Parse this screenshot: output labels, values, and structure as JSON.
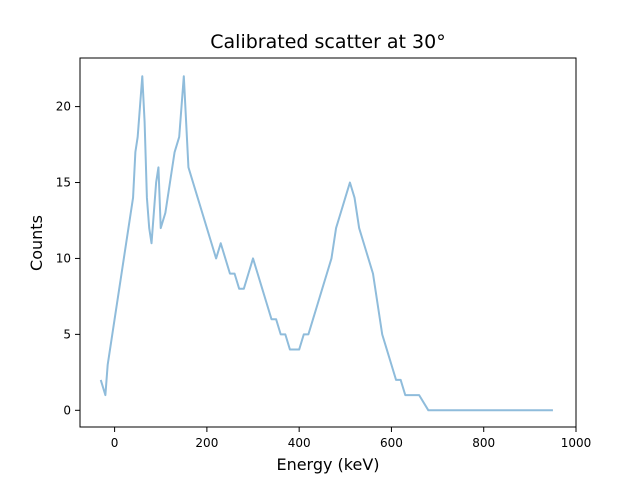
{
  "chart_data": {
    "type": "line",
    "title": "Calibrated scatter at 30°",
    "xlabel": "Energy (keV)",
    "ylabel": "Counts",
    "xlim": [
      -75,
      1000
    ],
    "ylim": [
      -1.1,
      23.2
    ],
    "x_ticks": [
      0,
      200,
      400,
      600,
      800,
      1000
    ],
    "y_ticks": [
      0,
      5,
      10,
      15,
      20
    ],
    "grid": false,
    "legend": "none",
    "color": "#8fbcdb",
    "series": [
      {
        "x": [
          -30,
          -20,
          -15,
          -10,
          -5,
          0,
          5,
          10,
          15,
          20,
          25,
          30,
          35,
          40,
          45,
          50,
          55,
          60,
          65,
          70,
          75,
          80,
          85,
          90,
          95,
          100,
          110,
          120,
          130,
          140,
          150,
          160,
          170,
          180,
          190,
          200,
          210,
          220,
          230,
          240,
          250,
          260,
          270,
          280,
          290,
          300,
          310,
          320,
          330,
          340,
          350,
          360,
          370,
          380,
          390,
          400,
          410,
          420,
          430,
          440,
          450,
          460,
          470,
          480,
          490,
          500,
          510,
          520,
          530,
          540,
          550,
          560,
          570,
          580,
          590,
          600,
          610,
          620,
          630,
          640,
          650,
          660,
          680,
          700,
          720,
          740,
          760,
          780,
          800,
          820,
          840,
          860,
          880,
          900,
          920,
          940,
          950
        ],
        "y": [
          2,
          1,
          3,
          4,
          5,
          6,
          7,
          8,
          9,
          10,
          11,
          12,
          13,
          14,
          17,
          18,
          20,
          22,
          19,
          14,
          12,
          11,
          13,
          15,
          16,
          12,
          13,
          15,
          17,
          18,
          22,
          16,
          15,
          14,
          13,
          12,
          11,
          10,
          11,
          10,
          9,
          9,
          8,
          8,
          9,
          10,
          9,
          8,
          7,
          6,
          6,
          5,
          5,
          4,
          4,
          4,
          5,
          5,
          6,
          7,
          8,
          9,
          10,
          12,
          13,
          14,
          15,
          14,
          12,
          11,
          10,
          9,
          7,
          5,
          4,
          3,
          2,
          2,
          1,
          1,
          1,
          1,
          0,
          0,
          0,
          0,
          0,
          0,
          0,
          0,
          0,
          0,
          0,
          0,
          0,
          0,
          0
        ]
      }
    ]
  }
}
